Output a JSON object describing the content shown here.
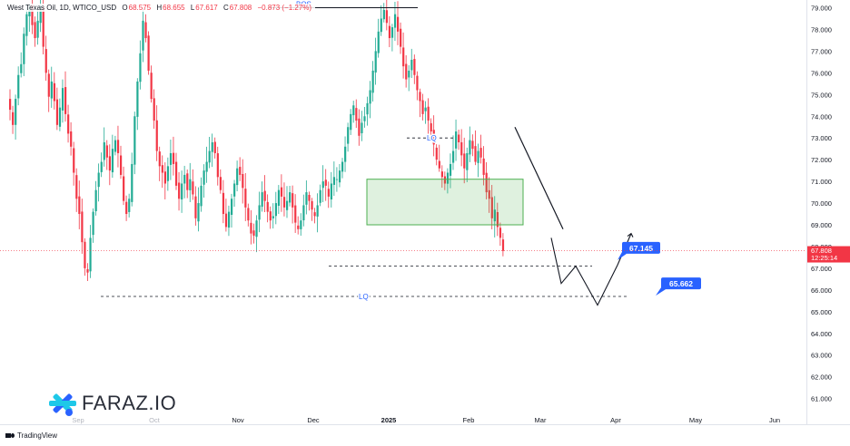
{
  "header": {
    "symbol": "West Texas Oil, 1D, WTICO_USD",
    "o_label": "O",
    "open": "68.575",
    "h_label": "H",
    "high": "68.655",
    "l_label": "L",
    "low": "67.617",
    "c_label": "C",
    "close": "67.808",
    "change": "−0.873 (−1.27%)"
  },
  "price_scale": {
    "ticks": [
      "79.000",
      "78.000",
      "77.000",
      "76.000",
      "75.000",
      "74.000",
      "73.000",
      "72.000",
      "71.000",
      "70.000",
      "69.000",
      "68.000",
      "67.000",
      "66.000",
      "65.000",
      "64.000",
      "63.000",
      "62.000",
      "61.000"
    ],
    "current_price": "67.808",
    "countdown": "12:25:14"
  },
  "time_axis": [
    "Sep",
    "Oct",
    "Nov",
    "Dec",
    "2025",
    "Feb",
    "Mar",
    "Apr",
    "May",
    "Jun"
  ],
  "annotations": {
    "bos": "BOS",
    "lq_upper": "LQ",
    "lq_lower": "LQ",
    "target1": "67.145",
    "target2": "65.662"
  },
  "brand": {
    "name": "FARAZ.IO"
  },
  "footer": {
    "name": "TradingView"
  },
  "colors": {
    "up": "#22ab94",
    "down": "#f23645",
    "zone": "#4caf50",
    "label_bg": "#2962ff"
  },
  "chart_data": {
    "type": "candlestick",
    "title": "West Texas Oil, 1D, WTICO_USD",
    "ylim": [
      60.5,
      79.3
    ],
    "right_axis": true,
    "grid": false,
    "x_months": [
      "Sep",
      "Oct",
      "Nov",
      "Dec",
      "2025",
      "Feb",
      "Mar",
      "Apr",
      "May",
      "Jun"
    ],
    "price_path_close": [
      74.3,
      73.6,
      74.8,
      75.9,
      76.4,
      77.8,
      78.7,
      79.0,
      78.2,
      77.6,
      78.4,
      79.1,
      77.2,
      76.0,
      74.9,
      75.6,
      74.7,
      73.6,
      74.4,
      75.3,
      74.1,
      73.2,
      72.6,
      71.4,
      70.2,
      69.5,
      68.2,
      67.0,
      66.8,
      68.4,
      69.6,
      70.6,
      71.4,
      71.9,
      72.8,
      72.1,
      71.5,
      72.5,
      72.9,
      72.3,
      71.3,
      70.1,
      69.5,
      70.2,
      71.8,
      74.0,
      75.6,
      76.9,
      78.4,
      77.6,
      76.1,
      74.8,
      73.8,
      72.4,
      71.7,
      71.4,
      70.9,
      71.7,
      72.3,
      71.8,
      70.8,
      70.2,
      70.9,
      71.3,
      70.6,
      71.1,
      70.4,
      69.3,
      70.0,
      70.8,
      71.5,
      71.9,
      72.4,
      72.8,
      72.3,
      71.2,
      70.6,
      69.5,
      68.9,
      69.6,
      70.2,
      70.9,
      71.6,
      71.3,
      70.7,
      69.8,
      69.2,
      68.6,
      68.5,
      69.2,
      69.9,
      70.5,
      70.1,
      69.6,
      69.2,
      69.4,
      70.0,
      70.6,
      70.3,
      69.8,
      70.1,
      70.5,
      69.8,
      69.1,
      68.8,
      69.2,
      69.9,
      70.5,
      70.1,
      69.7,
      69.4,
      69.9,
      70.6,
      71.0,
      70.8,
      70.3,
      70.9,
      71.2,
      71.1,
      71.5,
      71.9,
      72.6,
      73.5,
      74.1,
      74.5,
      73.8,
      73.1,
      73.7,
      74.0,
      74.6,
      75.2,
      76.1,
      77.0,
      77.9,
      78.5,
      78.9,
      78.3,
      77.6,
      78.1,
      78.7,
      77.9,
      77.2,
      76.3,
      75.7,
      76.1,
      76.6,
      75.9,
      75.2,
      74.7,
      74.1,
      74.4,
      73.8,
      73.3,
      72.7,
      72.0,
      71.6,
      71.2,
      70.9,
      71.4,
      71.8,
      72.4,
      73.3,
      72.8,
      72.2,
      71.6,
      72.3,
      72.9,
      72.5,
      71.9,
      72.4,
      72.1,
      71.3,
      70.5,
      70.2,
      69.3,
      69.7,
      68.9,
      68.4,
      67.8
    ],
    "levels": [
      {
        "label": "BOS",
        "price": 79.0
      },
      {
        "label": "LQ",
        "price": 73.0
      },
      {
        "label": "LQ",
        "price": 65.7
      },
      {
        "label": "",
        "price": 67.1
      }
    ],
    "zone": {
      "top": 71.1,
      "bottom": 69.0
    },
    "projection": [
      68.4,
      66.3,
      67.1,
      65.3,
      67.145,
      68.6
    ],
    "targets": [
      67.145,
      65.662
    ],
    "last_price": 67.808
  }
}
